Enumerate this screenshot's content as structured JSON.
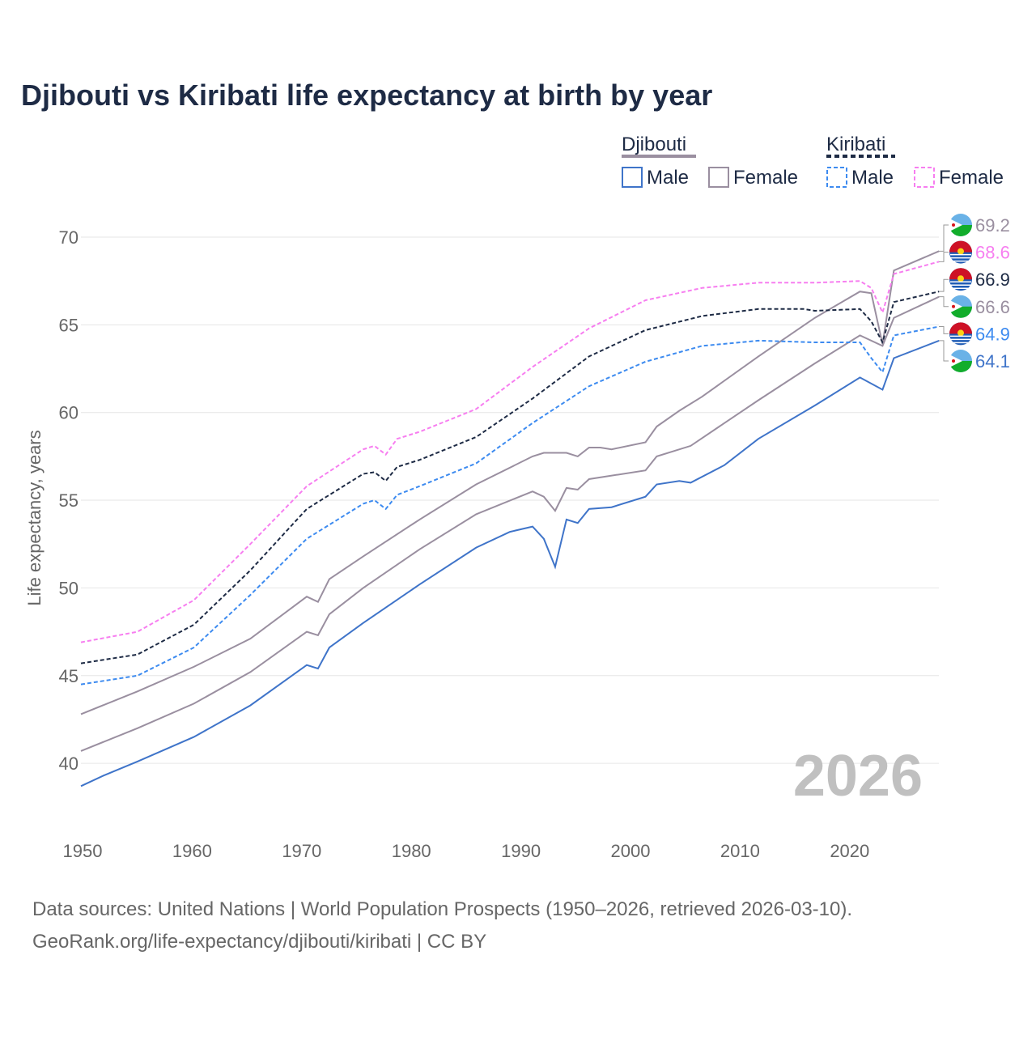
{
  "chart_data": {
    "type": "line",
    "title": "Djibouti vs Kiribati life expectancy at birth by year",
    "ylabel": "Life expectancy, years",
    "xlabel": "",
    "xlim": [
      1950,
      2026
    ],
    "ylim": [
      36.5,
      72
    ],
    "xticks": [
      "1950",
      "1960",
      "1970",
      "1980",
      "1990",
      "2000",
      "2010",
      "2020"
    ],
    "yticks": [
      "40",
      "45",
      "50",
      "55",
      "60",
      "65",
      "70"
    ],
    "grid": true,
    "watermark_year": "2026",
    "legend": {
      "groups": [
        {
          "name": "Djibouti",
          "items": [
            "Male",
            "Female"
          ]
        },
        {
          "name": "Kiribati",
          "items": [
            "Male",
            "Female"
          ]
        }
      ],
      "placement": "top-right"
    },
    "series": [
      {
        "name": "Djibouti Female",
        "country": "Djibouti",
        "color": "#9a8fa0",
        "dash": false,
        "end_label": "69.2",
        "points": [
          [
            1950,
            42.8
          ],
          [
            1955,
            44.1
          ],
          [
            1960,
            45.5
          ],
          [
            1965,
            47.1
          ],
          [
            1970,
            49.5
          ],
          [
            1971,
            49.2
          ],
          [
            1972,
            50.5
          ],
          [
            1975,
            51.8
          ],
          [
            1980,
            53.9
          ],
          [
            1985,
            55.9
          ],
          [
            1990,
            57.5
          ],
          [
            1991,
            57.7
          ],
          [
            1993,
            57.7
          ],
          [
            1994,
            57.5
          ],
          [
            1995,
            58.0
          ],
          [
            1996,
            58.0
          ],
          [
            1997,
            57.9
          ],
          [
            2000,
            58.3
          ],
          [
            2001,
            59.2
          ],
          [
            2003,
            60.1
          ],
          [
            2005,
            60.9
          ],
          [
            2010,
            63.2
          ],
          [
            2015,
            65.4
          ],
          [
            2019,
            66.9
          ],
          [
            2020,
            66.8
          ],
          [
            2021,
            63.9
          ],
          [
            2022,
            68.1
          ],
          [
            2026,
            69.2
          ]
        ]
      },
      {
        "name": "Kiribati Female",
        "country": "Kiribati",
        "color": "#f77ef0",
        "dash": true,
        "end_label": "68.6",
        "points": [
          [
            1950,
            46.9
          ],
          [
            1955,
            47.5
          ],
          [
            1960,
            49.3
          ],
          [
            1965,
            52.5
          ],
          [
            1970,
            55.8
          ],
          [
            1975,
            57.9
          ],
          [
            1976,
            58.1
          ],
          [
            1977,
            57.6
          ],
          [
            1978,
            58.5
          ],
          [
            1980,
            58.9
          ],
          [
            1985,
            60.2
          ],
          [
            1990,
            62.6
          ],
          [
            1995,
            64.8
          ],
          [
            2000,
            66.4
          ],
          [
            2005,
            67.1
          ],
          [
            2010,
            67.4
          ],
          [
            2015,
            67.4
          ],
          [
            2019,
            67.5
          ],
          [
            2020,
            67.1
          ],
          [
            2021,
            65.7
          ],
          [
            2022,
            67.9
          ],
          [
            2026,
            68.6
          ]
        ]
      },
      {
        "name": "Kiribati",
        "country": "Kiribati",
        "color": "#1e2b45",
        "dash": true,
        "end_label": "66.9",
        "points": [
          [
            1950,
            45.7
          ],
          [
            1955,
            46.2
          ],
          [
            1960,
            47.9
          ],
          [
            1965,
            51.0
          ],
          [
            1970,
            54.5
          ],
          [
            1975,
            56.5
          ],
          [
            1976,
            56.6
          ],
          [
            1977,
            56.1
          ],
          [
            1978,
            56.9
          ],
          [
            1980,
            57.3
          ],
          [
            1985,
            58.6
          ],
          [
            1990,
            60.8
          ],
          [
            1995,
            63.2
          ],
          [
            2000,
            64.7
          ],
          [
            2005,
            65.5
          ],
          [
            2010,
            65.9
          ],
          [
            2014,
            65.9
          ],
          [
            2015,
            65.8
          ],
          [
            2019,
            65.9
          ],
          [
            2020,
            65.2
          ],
          [
            2021,
            64.0
          ],
          [
            2022,
            66.3
          ],
          [
            2026,
            66.9
          ]
        ]
      },
      {
        "name": "Djibouti",
        "country": "Djibouti",
        "color": "#9a8fa0",
        "dash": false,
        "end_label": "66.6",
        "points": [
          [
            1950,
            40.7
          ],
          [
            1955,
            42.0
          ],
          [
            1960,
            43.4
          ],
          [
            1965,
            45.2
          ],
          [
            1970,
            47.5
          ],
          [
            1971,
            47.3
          ],
          [
            1972,
            48.5
          ],
          [
            1975,
            50.0
          ],
          [
            1980,
            52.2
          ],
          [
            1985,
            54.2
          ],
          [
            1990,
            55.5
          ],
          [
            1991,
            55.2
          ],
          [
            1992,
            54.4
          ],
          [
            1993,
            55.7
          ],
          [
            1994,
            55.6
          ],
          [
            1995,
            56.2
          ],
          [
            2000,
            56.7
          ],
          [
            2001,
            57.5
          ],
          [
            2004,
            58.1
          ],
          [
            2007,
            59.4
          ],
          [
            2010,
            60.7
          ],
          [
            2015,
            62.8
          ],
          [
            2019,
            64.4
          ],
          [
            2021,
            63.8
          ],
          [
            2022,
            65.4
          ],
          [
            2026,
            66.6
          ]
        ]
      },
      {
        "name": "Kiribati Male",
        "country": "Kiribati",
        "color": "#3d8bf0",
        "dash": true,
        "end_label": "64.9",
        "points": [
          [
            1950,
            44.5
          ],
          [
            1955,
            45.0
          ],
          [
            1960,
            46.6
          ],
          [
            1965,
            49.6
          ],
          [
            1970,
            52.8
          ],
          [
            1975,
            54.8
          ],
          [
            1976,
            55.0
          ],
          [
            1977,
            54.5
          ],
          [
            1978,
            55.3
          ],
          [
            1980,
            55.8
          ],
          [
            1985,
            57.1
          ],
          [
            1990,
            59.4
          ],
          [
            1995,
            61.5
          ],
          [
            2000,
            62.9
          ],
          [
            2005,
            63.8
          ],
          [
            2010,
            64.1
          ],
          [
            2015,
            64.0
          ],
          [
            2019,
            64.0
          ],
          [
            2020,
            63.1
          ],
          [
            2021,
            62.3
          ],
          [
            2022,
            64.4
          ],
          [
            2026,
            64.9
          ]
        ]
      },
      {
        "name": "Djibouti Male",
        "country": "Djibouti",
        "color": "#3f74c9",
        "dash": false,
        "end_label": "64.1",
        "points": [
          [
            1950,
            38.7
          ],
          [
            1952,
            39.3
          ],
          [
            1955,
            40.1
          ],
          [
            1960,
            41.5
          ],
          [
            1965,
            43.3
          ],
          [
            1970,
            45.6
          ],
          [
            1971,
            45.4
          ],
          [
            1972,
            46.6
          ],
          [
            1975,
            48.0
          ],
          [
            1980,
            50.2
          ],
          [
            1985,
            52.3
          ],
          [
            1988,
            53.2
          ],
          [
            1990,
            53.5
          ],
          [
            1991,
            52.8
          ],
          [
            1992,
            51.2
          ],
          [
            1993,
            53.9
          ],
          [
            1994,
            53.7
          ],
          [
            1995,
            54.5
          ],
          [
            1997,
            54.6
          ],
          [
            2000,
            55.2
          ],
          [
            2001,
            55.9
          ],
          [
            2003,
            56.1
          ],
          [
            2004,
            56.0
          ],
          [
            2007,
            57.0
          ],
          [
            2010,
            58.5
          ],
          [
            2015,
            60.4
          ],
          [
            2019,
            62.0
          ],
          [
            2021,
            61.3
          ],
          [
            2022,
            63.1
          ],
          [
            2026,
            64.1
          ]
        ]
      }
    ]
  },
  "footer": {
    "line1": "Data sources: United Nations | World Population Prospects (1950–2026, retrieved 2026-03-10).",
    "line2": "GeoRank.org/life-expectancy/djibouti/kiribati | CC BY"
  }
}
